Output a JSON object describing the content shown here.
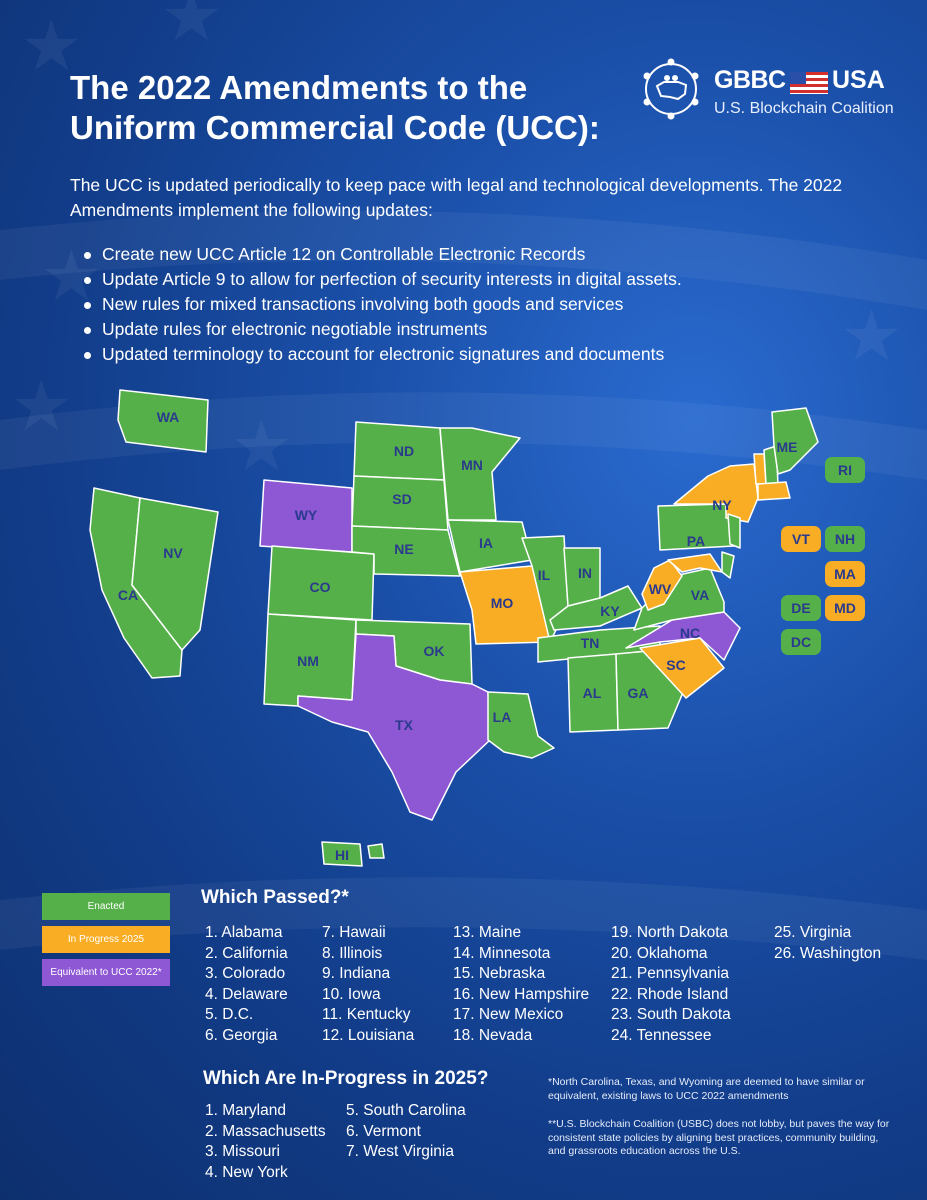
{
  "title": "The 2022 Amendments to the Uniform Commercial Code (UCC):",
  "logo": {
    "brand": "GBBC",
    "country": "USA",
    "subtitle": "U.S. Blockchain Coalition"
  },
  "intro": "The UCC is updated periodically to keep pace with legal and technological developments. The 2022 Amendments implement the following updates:",
  "bullets": [
    "Create new UCC Article 12 on Controllable Electronic Records",
    "Update Article 9 to allow for perfection of security interests in digital assets.",
    "New rules for mixed transactions involving both goods and services",
    "Update rules for electronic negotiable instruments",
    "Updated terminology to account for electronic signatures and documents"
  ],
  "colors": {
    "enacted": "#56b04a",
    "in_progress": "#f8ad25",
    "equivalent": "#8e57d4",
    "label": "#2a3a8c"
  },
  "map": {
    "states": {
      "WA": "WA",
      "CA": "CA",
      "NV": "NV",
      "WY": "WY",
      "CO": "CO",
      "NM": "NM",
      "ND": "ND",
      "SD": "SD",
      "NE": "NE",
      "OK": "OK",
      "TX": "TX",
      "MN": "MN",
      "IA": "IA",
      "MO": "MO",
      "LA": "LA",
      "IL": "IL",
      "IN": "IN",
      "KY": "KY",
      "TN": "TN",
      "AL": "AL",
      "GA": "GA",
      "SC": "SC",
      "NC": "NC",
      "VA": "VA",
      "WV": "WV",
      "PA": "PA",
      "NY": "NY",
      "ME": "ME",
      "HI": "HI"
    },
    "badges": [
      "RI",
      "VT",
      "NH",
      "MA",
      "DE",
      "MD",
      "DC"
    ]
  },
  "legend": {
    "enacted": "Enacted",
    "in_progress": "In Progress 2025",
    "equivalent": "Equivalent to UCC 2022*"
  },
  "passed_heading": "Which Passed?*",
  "passed": [
    [
      "1. Alabama",
      "2. California",
      "3. Colorado",
      "4. Delaware",
      "5. D.C.",
      "6. Georgia"
    ],
    [
      "7. Hawaii",
      "8. Illinois",
      "9. Indiana",
      "10. Iowa",
      "11. Kentucky",
      "12. Louisiana"
    ],
    [
      "13. Maine",
      "14. Minnesota",
      "15. Nebraska",
      "16. New Hampshire",
      "17. New Mexico",
      "18. Nevada"
    ],
    [
      "19. North Dakota",
      "20. Oklahoma",
      "21. Pennsylvania",
      "22. Rhode Island",
      "23. South Dakota",
      "24. Tennessee"
    ],
    [
      "25. Virginia",
      "26. Washington"
    ]
  ],
  "progress_heading": "Which Are In-Progress in 2025?",
  "progress": [
    [
      "1. Maryland",
      "2. Massachusetts",
      "3. Missouri",
      "4. New York"
    ],
    [
      "5. South Carolina",
      "6. Vermont",
      "7. West Virginia"
    ]
  ],
  "notes": [
    "*North Carolina, Texas, and Wyoming are deemed to have similar or equivalent, existing laws to UCC 2022 amendments",
    "**U.S. Blockchain Coalition (USBC) does not lobby, but paves the way for consistent state policies by aligning best practices, community building, and grassroots education across the U.S."
  ]
}
